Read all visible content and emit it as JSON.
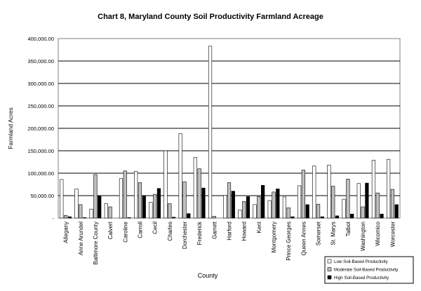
{
  "chart_data": {
    "type": "bar",
    "title": "Chart 8, Maryland County Soil Productivity Farmland Acreage",
    "xlabel": "County",
    "ylabel": "Farmland Acres",
    "ylim": [
      0,
      400000
    ],
    "y_ticks": [
      "-",
      "50,000.00",
      "100,000.00",
      "150,000.00",
      "200,000.00",
      "250,000.00",
      "300,000.00",
      "350,000.00",
      "400,000.00"
    ],
    "grid": true,
    "legend_position": "bottom-right",
    "categories": [
      "Allegany",
      "Anne Arundel",
      "Baltimore County",
      "Calvert",
      "Caroline",
      "Carroll",
      "Cecil",
      "Charles",
      "Dorchester",
      "Frederick",
      "Garrett",
      "Harford",
      "Howard",
      "Kent",
      "Montgomery",
      "Prince Georges",
      "Queen Annes",
      "Somerset",
      "St. Marys",
      "Talbot",
      "Washington",
      "Wicomico",
      "Worcester"
    ],
    "series": [
      {
        "name": "Low Soil-Based Productivity",
        "color": "#ffffff",
        "values": [
          86000,
          65000,
          20000,
          32000,
          88000,
          104000,
          35000,
          150000,
          188000,
          135000,
          383000,
          51000,
          18000,
          30000,
          39000,
          47000,
          72000,
          116000,
          118000,
          42000,
          77000,
          129000,
          131000
        ]
      },
      {
        "name": "Moderate Soil-Based Productivity",
        "color": "#c0c0c0",
        "values": [
          6000,
          30000,
          97000,
          25000,
          105000,
          79000,
          53000,
          32000,
          81000,
          110000,
          4000,
          79000,
          37000,
          48000,
          58000,
          23000,
          107000,
          31000,
          71000,
          87000,
          25000,
          56000,
          64000
        ]
      },
      {
        "name": "High Soil-Based Productivity",
        "color": "#000000",
        "values": [
          3000,
          1000,
          49000,
          0,
          1000,
          50000,
          66000,
          2000,
          10000,
          67000,
          0,
          60000,
          48000,
          73000,
          65000,
          3000,
          30000,
          3000,
          5000,
          9000,
          78000,
          9000,
          30000
        ]
      }
    ]
  }
}
